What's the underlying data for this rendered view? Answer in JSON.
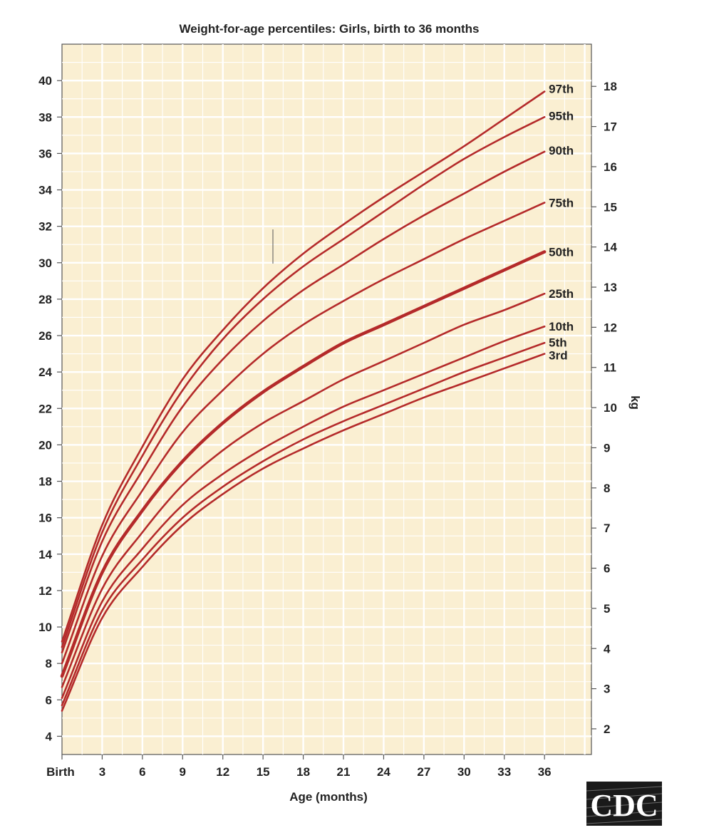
{
  "chart_data": {
    "type": "line",
    "title": "Weight-for-age percentiles: Girls, birth to 36 months",
    "xlabel": "Age (months)",
    "ylabel_right": "kg",
    "x": [
      0,
      3,
      6,
      9,
      12,
      15,
      18,
      21,
      24,
      27,
      30,
      33,
      36
    ],
    "x_tick_labels": [
      "Birth",
      "3",
      "6",
      "9",
      "12",
      "15",
      "18",
      "21",
      "24",
      "27",
      "30",
      "33",
      "36"
    ],
    "y_left_ticks": [
      "4",
      "6",
      "8",
      "10",
      "12",
      "14",
      "16",
      "18",
      "20",
      "22",
      "24",
      "26",
      "28",
      "30",
      "32",
      "34",
      "36",
      "38",
      "40"
    ],
    "y_right_ticks": [
      "2",
      "3",
      "4",
      "5",
      "6",
      "7",
      "8",
      "9",
      "10",
      "11",
      "12",
      "13",
      "14",
      "15",
      "16",
      "17",
      "18"
    ],
    "xlim": [
      0,
      39.5
    ],
    "ylim_lb": [
      3,
      42
    ],
    "grid": true,
    "background_color": "#faefd2",
    "grid_color": "#ffffff",
    "line_color": "#b42a2a",
    "series": [
      {
        "name": "97th",
        "values": [
          9.2,
          15.6,
          19.9,
          23.6,
          26.3,
          28.6,
          30.5,
          32.1,
          33.6,
          35.0,
          36.4,
          37.9,
          39.4
        ]
      },
      {
        "name": "95th",
        "values": [
          8.9,
          15.2,
          19.4,
          23.0,
          25.8,
          28.0,
          29.8,
          31.3,
          32.8,
          34.3,
          35.7,
          36.9,
          38.0
        ]
      },
      {
        "name": "90th",
        "values": [
          8.6,
          14.7,
          18.6,
          22.1,
          24.7,
          26.8,
          28.5,
          29.9,
          31.3,
          32.6,
          33.8,
          35.0,
          36.1
        ]
      },
      {
        "name": "75th",
        "values": [
          8.0,
          13.9,
          17.5,
          20.7,
          23.0,
          25.0,
          26.6,
          27.9,
          29.1,
          30.2,
          31.3,
          32.3,
          33.3
        ]
      },
      {
        "name": "50th",
        "values": [
          7.3,
          13.0,
          16.4,
          19.1,
          21.2,
          22.9,
          24.3,
          25.6,
          26.6,
          27.6,
          28.6,
          29.6,
          30.6
        ]
      },
      {
        "name": "25th",
        "values": [
          6.7,
          12.1,
          15.2,
          17.8,
          19.7,
          21.2,
          22.4,
          23.6,
          24.6,
          25.6,
          26.6,
          27.4,
          28.3
        ]
      },
      {
        "name": "10th",
        "values": [
          6.1,
          11.4,
          14.3,
          16.7,
          18.4,
          19.8,
          21.0,
          22.1,
          23.0,
          23.9,
          24.8,
          25.7,
          26.5
        ]
      },
      {
        "name": "5th",
        "values": [
          5.7,
          10.9,
          13.7,
          16.0,
          17.7,
          19.1,
          20.3,
          21.3,
          22.2,
          23.1,
          24.0,
          24.8,
          25.6
        ]
      },
      {
        "name": "3rd",
        "values": [
          5.4,
          10.5,
          13.3,
          15.6,
          17.3,
          18.7,
          19.8,
          20.8,
          21.7,
          22.6,
          23.4,
          24.2,
          25.0
        ]
      }
    ]
  },
  "logo": {
    "text": "CDC"
  }
}
